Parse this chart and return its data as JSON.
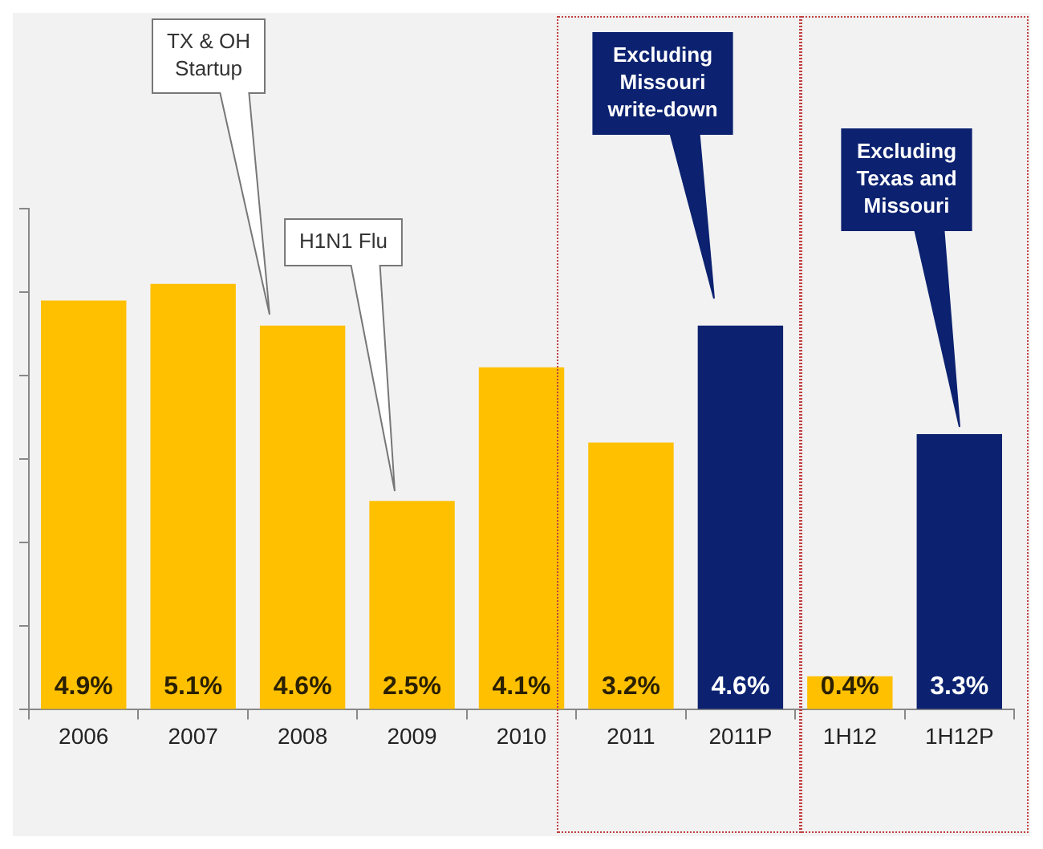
{
  "chart_data": {
    "type": "bar",
    "categories": [
      "2006",
      "2007",
      "2008",
      "2009",
      "2010",
      "2011",
      "2011P",
      "1H12",
      "1H12P"
    ],
    "values": [
      4.9,
      5.1,
      4.6,
      2.5,
      4.1,
      3.2,
      4.6,
      0.4,
      3.3
    ],
    "colors": [
      "#ffc000",
      "#ffc000",
      "#ffc000",
      "#ffc000",
      "#ffc000",
      "#ffc000",
      "#0c2270",
      "#ffc000",
      "#0c2270"
    ],
    "value_labels": [
      "4.9%",
      "5.1%",
      "4.6%",
      "2.5%",
      "4.1%",
      "3.2%",
      "4.6%",
      "0.4%",
      "3.3%"
    ],
    "tick_labels": "x",
    "grid": false,
    "legend": false,
    "annotations": [
      "TX & OH Startup",
      "H1N1 Flu",
      "Excluding Missouri write-down",
      "Excluding Texas and Missouri"
    ]
  }
}
